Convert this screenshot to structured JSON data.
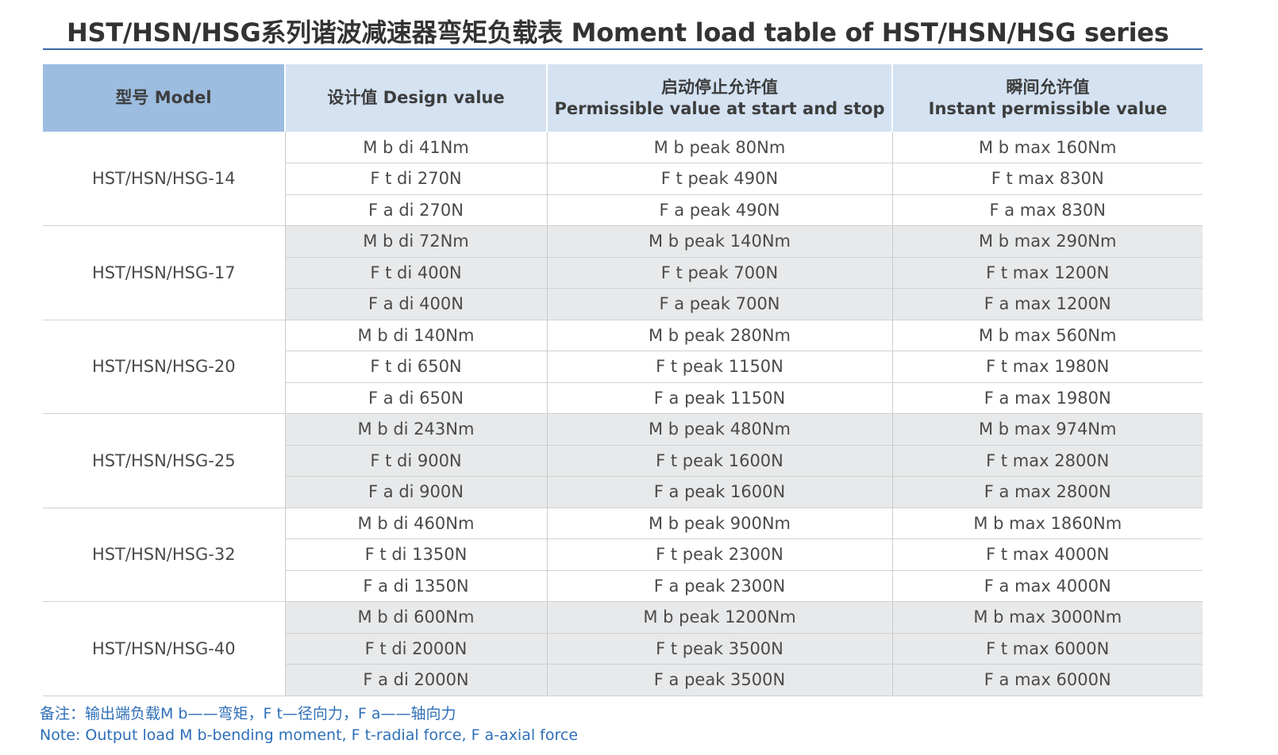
{
  "title": "HST/HSN/HSG系列谐波减速器弯矩负载表 Moment load table of HST/HSN/HSG series",
  "headers": {
    "model": "型号 Model",
    "design": "设计值 Design value",
    "start_stop_cn": "启动停止允许值",
    "start_stop_en": "Permissible value at start and stop",
    "instant_cn": "瞬间允许值",
    "instant_en": "Instant permissible value"
  },
  "groups": [
    {
      "model": "HST/HSN/HSG-14",
      "rows": [
        [
          "M b di 41Nm",
          "M b peak 80Nm",
          "M b max 160Nm"
        ],
        [
          "F t di 270N",
          "F t peak 490N",
          "F t max 830N"
        ],
        [
          "F a di 270N",
          "F a peak 490N",
          "F a max 830N"
        ]
      ]
    },
    {
      "model": "HST/HSN/HSG-17",
      "rows": [
        [
          "M b di 72Nm",
          "M b peak 140Nm",
          "M b max 290Nm"
        ],
        [
          "F t di 400N",
          "F t peak 700N",
          "F t max 1200N"
        ],
        [
          "F a di 400N",
          "F a peak 700N",
          "F a max 1200N"
        ]
      ]
    },
    {
      "model": "HST/HSN/HSG-20",
      "rows": [
        [
          "M b di 140Nm",
          "M b peak 280Nm",
          "M b max 560Nm"
        ],
        [
          "F t di 650N",
          "F t peak 1150N",
          "F t max 1980N"
        ],
        [
          "F a di 650N",
          "F a peak 1150N",
          "F a max 1980N"
        ]
      ]
    },
    {
      "model": "HST/HSN/HSG-25",
      "rows": [
        [
          "M b di 243Nm",
          "M b peak 480Nm",
          "M b max 974Nm"
        ],
        [
          "F t di 900N",
          "F t peak 1600N",
          "F t max 2800N"
        ],
        [
          "F a di 900N",
          "F a peak 1600N",
          "F a max 2800N"
        ]
      ]
    },
    {
      "model": "HST/HSN/HSG-32",
      "rows": [
        [
          "M b di 460Nm",
          "M b peak 900Nm",
          "M b max 1860Nm"
        ],
        [
          "F t di 1350N",
          "F t peak 2300N",
          "F t max 4000N"
        ],
        [
          "F a di 1350N",
          "F a peak 2300N",
          "F a max 4000N"
        ]
      ]
    },
    {
      "model": "HST/HSN/HSG-40",
      "rows": [
        [
          "M b di 600Nm",
          "M b peak 1200Nm",
          "M b max 3000Nm"
        ],
        [
          "F t di 2000N",
          "F t peak 3500N",
          "F t max 6000N"
        ],
        [
          "F a di 2000N",
          "F a peak 3500N",
          "F a max 6000N"
        ]
      ]
    }
  ],
  "note": {
    "cn": "备注：输出端负载M b——弯矩，F t—径向力，F a——轴向力",
    "en": "Note: Output load M b-bending moment, F t-radial force, F a-axial force"
  },
  "colors": {
    "header_model": "#9dbde0",
    "header": "#d4e2f2",
    "stripe": "#e8e9ea",
    "note": "#2e6fb8",
    "rule": "#3a67a5"
  }
}
